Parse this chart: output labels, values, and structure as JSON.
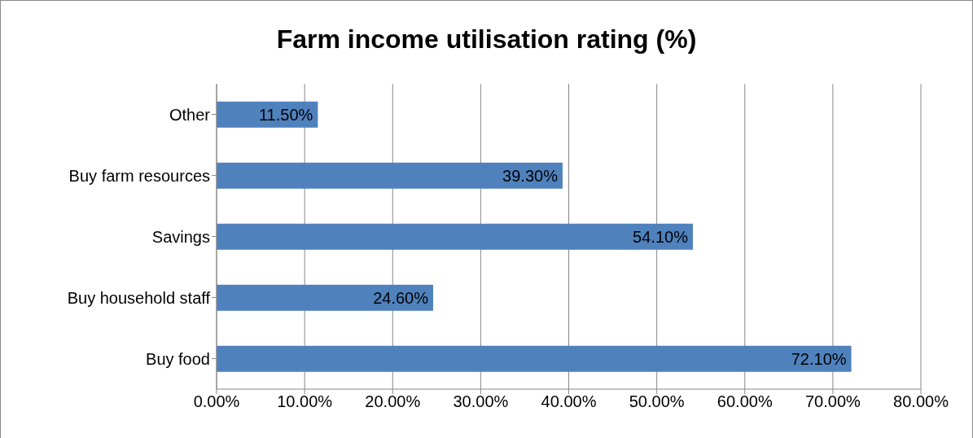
{
  "chart_data": {
    "type": "bar",
    "title": "Farm income utilisation rating (%)",
    "orientation": "horizontal",
    "categories": [
      "Other",
      "Buy farm resources",
      "Savings",
      "Buy household staff",
      "Buy food"
    ],
    "values": [
      11.5,
      39.3,
      54.1,
      24.6,
      72.1
    ],
    "value_labels": [
      "11.50%",
      "39.30%",
      "54.10%",
      "24.60%",
      "72.10%"
    ],
    "color": "#4f81bd",
    "xlim": [
      0,
      80
    ],
    "xticks": [
      {
        "value": 0,
        "label": "0.00%"
      },
      {
        "value": 10,
        "label": "10.00%"
      },
      {
        "value": 20,
        "label": "20.00%"
      },
      {
        "value": 30,
        "label": "30.00%"
      },
      {
        "value": 40,
        "label": "40.00%"
      },
      {
        "value": 50,
        "label": "50.00%"
      },
      {
        "value": 60,
        "label": "60.00%"
      },
      {
        "value": 70,
        "label": "70.00%"
      },
      {
        "value": 80,
        "label": "80.00%"
      }
    ],
    "grid": "x",
    "legend": false
  }
}
